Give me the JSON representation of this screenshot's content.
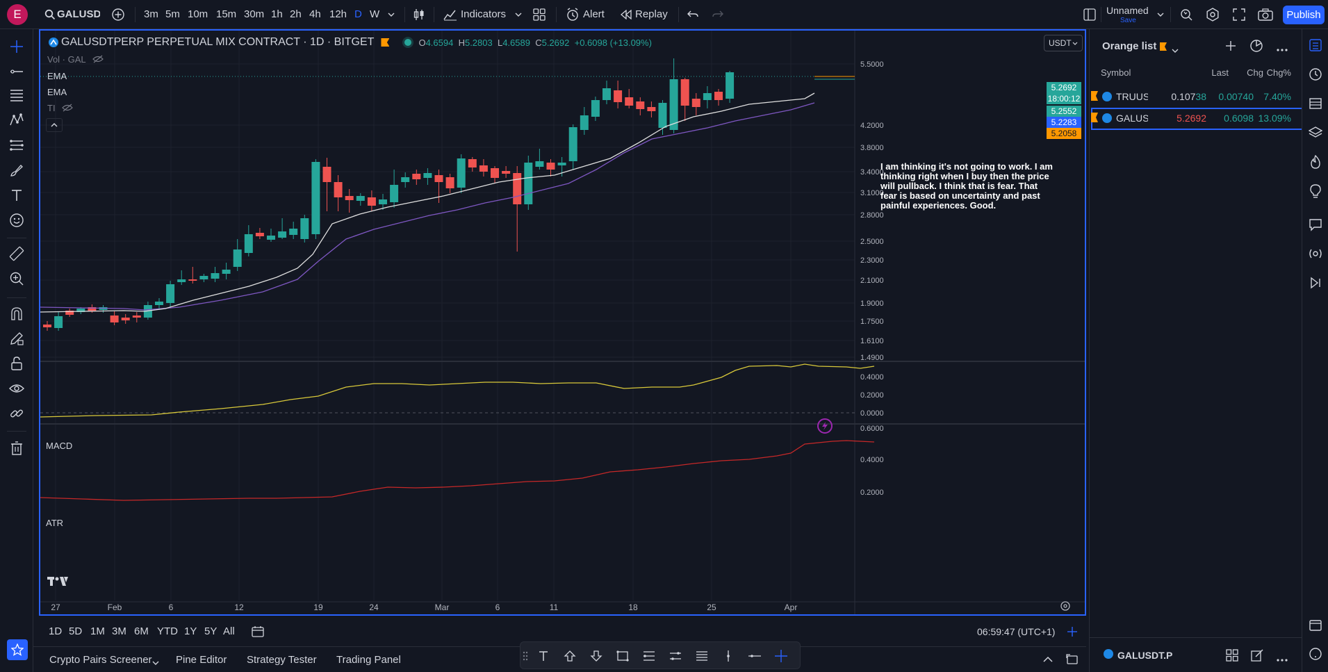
{
  "header": {
    "avatar_letter": "E",
    "symbol_search": "GALUSDT",
    "intervals": [
      "3m",
      "5m",
      "10m",
      "15m",
      "30m",
      "1h",
      "2h",
      "4h",
      "12h",
      "D",
      "W"
    ],
    "active_interval": "D",
    "indicators_label": "Indicators",
    "alert_label": "Alert",
    "replay_label": "Replay",
    "layout_name": "Unnamed",
    "layout_save": "Save",
    "publish_label": "Publish"
  },
  "chart": {
    "symbol_title": "GALUSDTPERP PERPETUAL MIX CONTRACT · 1D · BITGET",
    "ohlc": {
      "o": "4.6594",
      "h": "5.2803",
      "l": "4.6589",
      "c": "5.2692",
      "chg": "+0.6098 (+13.09%)"
    },
    "legend": {
      "vol": "Vol · GAL",
      "ema1": "EMA",
      "ema2": "EMA",
      "ti": "TI"
    },
    "currency": "USDT",
    "price_axis": [
      "5.5000",
      "4.2000",
      "3.8000",
      "3.4000",
      "3.1000",
      "2.8000",
      "2.5000",
      "2.3000",
      "2.1000",
      "1.9000",
      "1.7500",
      "1.6100",
      "1.4900"
    ],
    "price_badges": {
      "last": "5.2692",
      "countdown": "18:00:12",
      "b2": "5.2552",
      "b3": "5.2283",
      "b4": "5.2058"
    },
    "macd_label": "MACD",
    "macd_axis": [
      "0.4000",
      "0.2000",
      "0.0000"
    ],
    "atr_label": "ATR",
    "atr_axis": [
      "0.6000",
      "0.4000",
      "0.2000"
    ],
    "time_axis": [
      "27",
      "Feb",
      "6",
      "12",
      "19",
      "24",
      "Mar",
      "6",
      "11",
      "18",
      "25",
      "Apr"
    ],
    "note": "I am thinking it's not going to work. I am thinking right when I buy then the price will pullback. I think that is fear. That fear is based on uncertainty and past painful experiences. Good.",
    "colors": {
      "up": "#26a69a",
      "down": "#ef5350",
      "ema_fast": "#e0e0e0",
      "ema_slow": "#7e57c2",
      "macd": "#d9c93a",
      "atr": "#c62828"
    }
  },
  "range_bar": {
    "ranges": [
      "1D",
      "5D",
      "1M",
      "3M",
      "6M",
      "YTD",
      "1Y",
      "5Y",
      "All"
    ],
    "clock": "06:59:47 (UTC+1)"
  },
  "bottom_tabs": [
    "Crypto Pairs Screener",
    "Pine Editor",
    "Strategy Tester",
    "Trading Panel"
  ],
  "watchlist": {
    "title": "Orange list",
    "columns": {
      "symbol": "Symbol",
      "last": "Last",
      "chg": "Chg",
      "chgp": "Chg%"
    },
    "rows": [
      {
        "symbol": "TRUUSI",
        "last_a": "0.107",
        "last_b": "38",
        "chg": "0.00740",
        "chgp": "7.40%"
      },
      {
        "symbol": "GALUSI",
        "last": "5.2692",
        "chg": "0.6098",
        "chgp": "13.09%"
      }
    ],
    "footer_symbol": "GALUSDT.P"
  }
}
